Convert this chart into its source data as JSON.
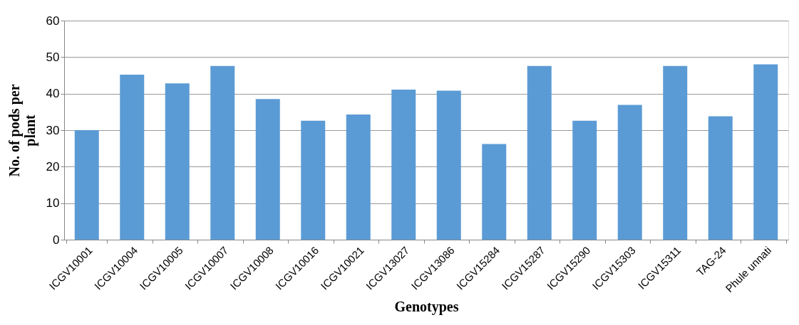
{
  "chart_data": {
    "type": "bar",
    "xlabel": "Genotypes",
    "ylabel": "No. of  pods per plant",
    "categories": [
      "ICGV10001",
      "ICGV10004",
      "ICGV10005",
      "ICGV10007",
      "ICGV10008",
      "ICGV10016",
      "ICGV10021",
      "ICGV13027",
      "ICGV13086",
      "ICGV15284",
      "ICGV15287",
      "ICGV15290",
      "ICGV15303",
      "ICGV15311",
      "TAG-24",
      "Phule unnati"
    ],
    "values": [
      30.0,
      45.2,
      42.8,
      47.6,
      38.5,
      32.6,
      34.3,
      41.1,
      40.8,
      26.2,
      47.6,
      32.6,
      36.9,
      47.6,
      33.8,
      48.0
    ],
    "color": "#5b9bd5",
    "ylim": [
      0,
      60
    ],
    "yticks": [
      0,
      10,
      20,
      30,
      40,
      50,
      60
    ],
    "grid": "y"
  }
}
